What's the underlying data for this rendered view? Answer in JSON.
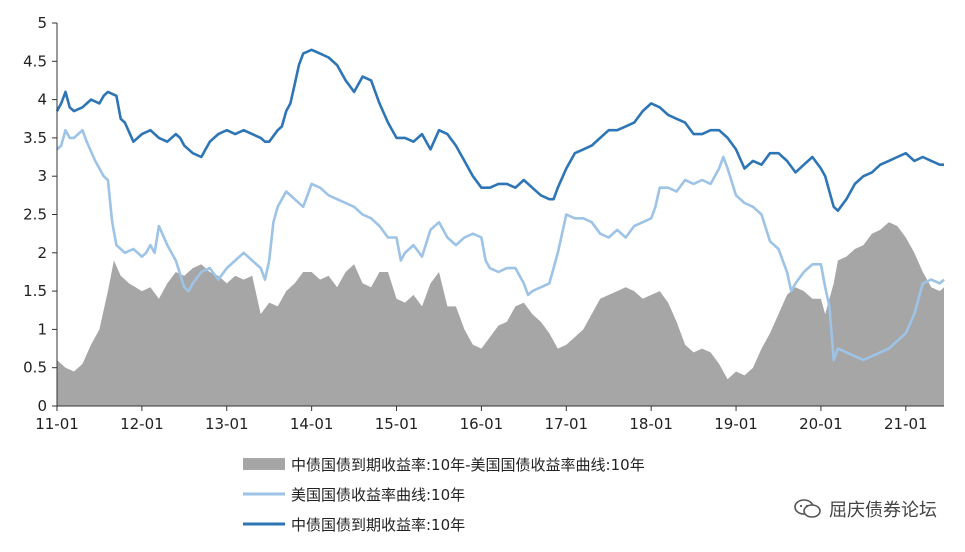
{
  "chart_data": {
    "type": "line",
    "title": "",
    "xlabel": "",
    "ylabel": "",
    "ylim": [
      0,
      5
    ],
    "yticks": [
      "0",
      "0.5",
      "1",
      "1.5",
      "2",
      "2.5",
      "3",
      "3.5",
      "4",
      "4.5",
      "5"
    ],
    "xticks": [
      "11-01",
      "12-01",
      "13-01",
      "14-01",
      "15-01",
      "16-01",
      "17-01",
      "18-01",
      "19-01",
      "20-01",
      "21-01"
    ],
    "xlim": [
      2011.0,
      2021.45
    ],
    "legend_position": "bottom",
    "grid": false,
    "series": [
      {
        "name": "中债国债到期收益率:10年-美国国债收益率曲线:10年",
        "kind": "area",
        "color": "#a6a6a6",
        "x": [
          2011.0,
          2011.1,
          2011.2,
          2011.3,
          2011.4,
          2011.5,
          2011.6,
          2011.67,
          2011.75,
          2011.85,
          2012.0,
          2012.1,
          2012.2,
          2012.3,
          2012.4,
          2012.5,
          2012.6,
          2012.7,
          2012.8,
          2012.9,
          2013.0,
          2013.1,
          2013.2,
          2013.3,
          2013.4,
          2013.5,
          2013.6,
          2013.7,
          2013.8,
          2013.9,
          2014.0,
          2014.1,
          2014.2,
          2014.3,
          2014.4,
          2014.5,
          2014.6,
          2014.7,
          2014.8,
          2014.9,
          2015.0,
          2015.1,
          2015.2,
          2015.3,
          2015.4,
          2015.5,
          2015.6,
          2015.7,
          2015.8,
          2015.9,
          2016.0,
          2016.1,
          2016.2,
          2016.3,
          2016.4,
          2016.5,
          2016.6,
          2016.7,
          2016.8,
          2016.9,
          2017.0,
          2017.1,
          2017.2,
          2017.3,
          2017.4,
          2017.5,
          2017.6,
          2017.7,
          2017.8,
          2017.9,
          2018.0,
          2018.1,
          2018.2,
          2018.3,
          2018.4,
          2018.5,
          2018.6,
          2018.7,
          2018.8,
          2018.9,
          2019.0,
          2019.1,
          2019.2,
          2019.3,
          2019.4,
          2019.5,
          2019.6,
          2019.7,
          2019.8,
          2019.9,
          2020.0,
          2020.05,
          2020.1,
          2020.15,
          2020.2,
          2020.3,
          2020.4,
          2020.5,
          2020.6,
          2020.7,
          2020.8,
          2020.9,
          2021.0,
          2021.1,
          2021.2,
          2021.3,
          2021.4,
          2021.45
        ],
        "values": [
          0.6,
          0.5,
          0.45,
          0.55,
          0.8,
          1.0,
          1.5,
          1.9,
          1.7,
          1.6,
          1.5,
          1.55,
          1.4,
          1.6,
          1.75,
          1.7,
          1.8,
          1.85,
          1.75,
          1.7,
          1.6,
          1.7,
          1.65,
          1.7,
          1.2,
          1.35,
          1.3,
          1.5,
          1.6,
          1.75,
          1.75,
          1.65,
          1.7,
          1.55,
          1.75,
          1.85,
          1.6,
          1.55,
          1.75,
          1.75,
          1.4,
          1.35,
          1.45,
          1.3,
          1.6,
          1.75,
          1.3,
          1.3,
          1.0,
          0.8,
          0.75,
          0.9,
          1.05,
          1.1,
          1.3,
          1.35,
          1.2,
          1.1,
          0.95,
          0.75,
          0.8,
          0.9,
          1.0,
          1.2,
          1.4,
          1.45,
          1.5,
          1.55,
          1.5,
          1.4,
          1.45,
          1.5,
          1.35,
          1.1,
          0.8,
          0.7,
          0.75,
          0.7,
          0.55,
          0.35,
          0.45,
          0.4,
          0.5,
          0.75,
          0.95,
          1.2,
          1.45,
          1.55,
          1.5,
          1.4,
          1.4,
          1.2,
          1.4,
          1.6,
          1.9,
          1.95,
          2.05,
          2.1,
          2.25,
          2.3,
          2.4,
          2.35,
          2.2,
          2.0,
          1.75,
          1.55,
          1.5,
          1.55
        ]
      },
      {
        "name": "美国国债收益率曲线:10年",
        "kind": "line",
        "color": "#9dc3e6",
        "x": [
          2011.0,
          2011.05,
          2011.1,
          2011.15,
          2011.2,
          2011.3,
          2011.35,
          2011.45,
          2011.55,
          2011.6,
          2011.65,
          2011.7,
          2011.8,
          2011.9,
          2012.0,
          2012.05,
          2012.1,
          2012.15,
          2012.2,
          2012.3,
          2012.4,
          2012.5,
          2012.55,
          2012.6,
          2012.7,
          2012.8,
          2012.9,
          2013.0,
          2013.1,
          2013.2,
          2013.3,
          2013.4,
          2013.45,
          2013.5,
          2013.55,
          2013.6,
          2013.7,
          2013.8,
          2013.9,
          2014.0,
          2014.1,
          2014.2,
          2014.3,
          2014.4,
          2014.5,
          2014.6,
          2014.7,
          2014.8,
          2014.9,
          2015.0,
          2015.05,
          2015.1,
          2015.2,
          2015.3,
          2015.4,
          2015.5,
          2015.55,
          2015.6,
          2015.7,
          2015.8,
          2015.9,
          2016.0,
          2016.05,
          2016.1,
          2016.2,
          2016.3,
          2016.4,
          2016.5,
          2016.55,
          2016.6,
          2016.7,
          2016.8,
          2016.85,
          2016.9,
          2017.0,
          2017.1,
          2017.2,
          2017.3,
          2017.4,
          2017.5,
          2017.6,
          2017.7,
          2017.8,
          2017.9,
          2018.0,
          2018.05,
          2018.1,
          2018.2,
          2018.3,
          2018.4,
          2018.5,
          2018.6,
          2018.7,
          2018.8,
          2018.85,
          2018.9,
          2019.0,
          2019.1,
          2019.2,
          2019.3,
          2019.4,
          2019.5,
          2019.6,
          2019.65,
          2019.7,
          2019.8,
          2019.9,
          2020.0,
          2020.05,
          2020.1,
          2020.15,
          2020.2,
          2020.3,
          2020.4,
          2020.5,
          2020.6,
          2020.7,
          2020.8,
          2020.9,
          2021.0,
          2021.1,
          2021.2,
          2021.3,
          2021.4,
          2021.45
        ],
        "values": [
          3.35,
          3.4,
          3.6,
          3.5,
          3.5,
          3.6,
          3.45,
          3.2,
          3.0,
          2.95,
          2.4,
          2.1,
          2.0,
          2.05,
          1.95,
          2.0,
          2.1,
          2.0,
          2.35,
          2.1,
          1.9,
          1.55,
          1.5,
          1.6,
          1.75,
          1.8,
          1.65,
          1.8,
          1.9,
          2.0,
          1.9,
          1.8,
          1.65,
          1.9,
          2.4,
          2.6,
          2.8,
          2.7,
          2.6,
          2.9,
          2.85,
          2.75,
          2.7,
          2.65,
          2.6,
          2.5,
          2.45,
          2.35,
          2.2,
          2.2,
          1.9,
          2.0,
          2.1,
          1.95,
          2.3,
          2.4,
          2.3,
          2.2,
          2.1,
          2.2,
          2.25,
          2.2,
          1.9,
          1.8,
          1.75,
          1.8,
          1.8,
          1.6,
          1.45,
          1.5,
          1.55,
          1.6,
          1.8,
          2.0,
          2.5,
          2.45,
          2.45,
          2.4,
          2.25,
          2.2,
          2.3,
          2.2,
          2.35,
          2.4,
          2.45,
          2.6,
          2.85,
          2.85,
          2.8,
          2.95,
          2.9,
          2.95,
          2.9,
          3.1,
          3.25,
          3.1,
          2.75,
          2.65,
          2.6,
          2.5,
          2.15,
          2.05,
          1.75,
          1.5,
          1.6,
          1.75,
          1.85,
          1.85,
          1.55,
          1.3,
          0.6,
          0.75,
          0.7,
          0.65,
          0.6,
          0.65,
          0.7,
          0.75,
          0.85,
          0.95,
          1.2,
          1.6,
          1.65,
          1.6,
          1.65
        ]
      },
      {
        "name": "中债国债到期收益率:10年",
        "kind": "line",
        "color": "#2e75b6",
        "x": [
          2011.0,
          2011.05,
          2011.1,
          2011.15,
          2011.2,
          2011.3,
          2011.4,
          2011.5,
          2011.55,
          2011.6,
          2011.7,
          2011.75,
          2011.8,
          2011.9,
          2012.0,
          2012.1,
          2012.2,
          2012.3,
          2012.4,
          2012.45,
          2012.5,
          2012.6,
          2012.7,
          2012.8,
          2012.9,
          2013.0,
          2013.1,
          2013.2,
          2013.3,
          2013.4,
          2013.45,
          2013.5,
          2013.6,
          2013.65,
          2013.7,
          2013.75,
          2013.8,
          2013.85,
          2013.9,
          2014.0,
          2014.1,
          2014.2,
          2014.3,
          2014.4,
          2014.5,
          2014.6,
          2014.7,
          2014.8,
          2014.9,
          2015.0,
          2015.1,
          2015.2,
          2015.3,
          2015.4,
          2015.5,
          2015.6,
          2015.7,
          2015.8,
          2015.9,
          2016.0,
          2016.1,
          2016.2,
          2016.3,
          2016.4,
          2016.5,
          2016.6,
          2016.7,
          2016.8,
          2016.85,
          2016.9,
          2017.0,
          2017.1,
          2017.2,
          2017.3,
          2017.4,
          2017.5,
          2017.6,
          2017.7,
          2017.8,
          2017.9,
          2018.0,
          2018.1,
          2018.2,
          2018.3,
          2018.4,
          2018.5,
          2018.6,
          2018.7,
          2018.8,
          2018.9,
          2019.0,
          2019.1,
          2019.2,
          2019.3,
          2019.4,
          2019.5,
          2019.6,
          2019.7,
          2019.8,
          2019.9,
          2020.0,
          2020.05,
          2020.1,
          2020.15,
          2020.2,
          2020.3,
          2020.4,
          2020.5,
          2020.6,
          2020.7,
          2020.8,
          2020.9,
          2021.0,
          2021.1,
          2021.2,
          2021.3,
          2021.4,
          2021.45
        ],
        "values": [
          3.85,
          3.95,
          4.1,
          3.9,
          3.85,
          3.9,
          4.0,
          3.95,
          4.05,
          4.1,
          4.05,
          3.75,
          3.7,
          3.45,
          3.55,
          3.6,
          3.5,
          3.45,
          3.55,
          3.5,
          3.4,
          3.3,
          3.25,
          3.45,
          3.55,
          3.6,
          3.55,
          3.6,
          3.55,
          3.5,
          3.45,
          3.45,
          3.6,
          3.65,
          3.85,
          3.95,
          4.2,
          4.45,
          4.6,
          4.65,
          4.6,
          4.55,
          4.45,
          4.25,
          4.1,
          4.3,
          4.25,
          3.95,
          3.7,
          3.5,
          3.5,
          3.45,
          3.55,
          3.35,
          3.6,
          3.55,
          3.4,
          3.2,
          3.0,
          2.85,
          2.85,
          2.9,
          2.9,
          2.85,
          2.95,
          2.85,
          2.75,
          2.7,
          2.7,
          2.85,
          3.1,
          3.3,
          3.35,
          3.4,
          3.5,
          3.6,
          3.6,
          3.65,
          3.7,
          3.85,
          3.95,
          3.9,
          3.8,
          3.75,
          3.7,
          3.55,
          3.55,
          3.6,
          3.6,
          3.5,
          3.35,
          3.1,
          3.2,
          3.15,
          3.3,
          3.3,
          3.2,
          3.05,
          3.15,
          3.25,
          3.1,
          3.0,
          2.8,
          2.6,
          2.55,
          2.7,
          2.9,
          3.0,
          3.05,
          3.15,
          3.2,
          3.25,
          3.3,
          3.2,
          3.25,
          3.2,
          3.15,
          3.15
        ]
      }
    ]
  },
  "watermark": {
    "text": "屈庆债券论坛",
    "icon": "wechat-icon"
  }
}
